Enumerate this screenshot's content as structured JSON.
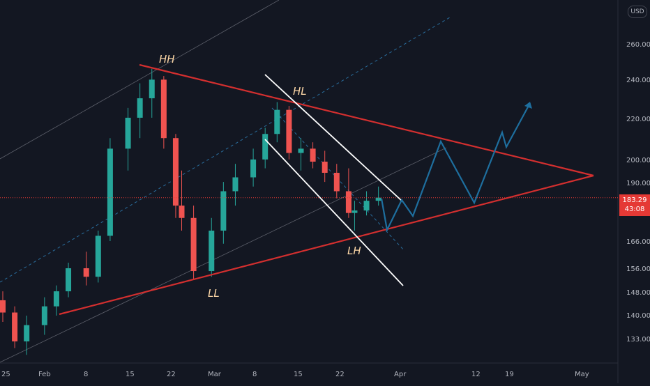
{
  "currency": "USD",
  "last_price": "183.29",
  "countdown": "43:08",
  "colors": {
    "background": "#131722",
    "up_candle": "#26a69a",
    "down_candle": "#ef5350",
    "triangle": "#d32f2f",
    "channel": "#ffffff",
    "projection": "#1e6f9f",
    "dashed_trend": "#2a6e9e",
    "price_line": "#e53935"
  },
  "y_axis": {
    "scale": "log",
    "ticks": [
      "260.00",
      "240.00",
      "220.00",
      "200.00",
      "190.00",
      "166.00",
      "156.00",
      "148.00",
      "140.00",
      "133.00"
    ]
  },
  "x_axis": {
    "ticks": [
      "25",
      "Feb",
      "8",
      "15",
      "22",
      "Mar",
      "8",
      "15",
      "22",
      "Apr",
      "12",
      "19",
      "May"
    ]
  },
  "annotations": {
    "hh": "HH",
    "hl": "HL",
    "ll": "LL",
    "lh": "LH"
  },
  "chart_data": {
    "type": "candlestick",
    "x_axis_type": "date",
    "y_axis_type": "log",
    "ylim": [
      125,
      290
    ],
    "xlim": [
      "2021-01-25",
      "2021-05-07"
    ],
    "grid": false,
    "price_line": 183.29,
    "series": [
      {
        "values": [
          [
            "2021-01-25",
            145,
            148,
            138,
            141
          ],
          [
            "2021-01-27",
            141,
            143,
            130,
            132
          ],
          [
            "2021-01-29",
            132,
            140,
            128,
            137
          ],
          [
            "2021-02-01",
            137,
            146,
            134,
            143
          ],
          [
            "2021-02-03",
            143,
            150,
            140,
            148
          ],
          [
            "2021-02-05",
            148,
            158,
            146,
            156
          ],
          [
            "2021-02-08",
            156,
            162,
            150,
            153
          ],
          [
            "2021-02-10",
            153,
            170,
            151,
            168
          ],
          [
            "2021-02-12",
            168,
            210,
            166,
            205
          ],
          [
            "2021-02-15",
            205,
            225,
            195,
            220
          ],
          [
            "2021-02-17",
            220,
            238,
            210,
            230
          ],
          [
            "2021-02-19",
            230,
            246,
            220,
            240
          ],
          [
            "2021-02-21",
            240,
            242,
            205,
            210
          ],
          [
            "2021-02-23",
            210,
            212,
            175,
            180
          ],
          [
            "2021-02-24",
            180,
            195,
            170,
            175
          ],
          [
            "2021-02-26",
            175,
            180,
            152,
            155
          ],
          [
            "2021-03-01",
            155,
            175,
            153,
            170
          ],
          [
            "2021-03-03",
            170,
            190,
            165,
            186
          ],
          [
            "2021-03-05",
            186,
            198,
            180,
            192
          ],
          [
            "2021-03-08",
            192,
            205,
            188,
            200
          ],
          [
            "2021-03-10",
            200,
            215,
            196,
            212
          ],
          [
            "2021-03-12",
            212,
            228,
            208,
            224
          ],
          [
            "2021-03-14",
            224,
            226,
            200,
            203
          ],
          [
            "2021-03-16",
            203,
            210,
            195,
            205
          ],
          [
            "2021-03-18",
            205,
            208,
            196,
            199
          ],
          [
            "2021-03-20",
            199,
            204,
            190,
            194
          ],
          [
            "2021-03-22",
            194,
            198,
            183,
            186
          ],
          [
            "2021-03-24",
            186,
            196,
            175,
            177
          ],
          [
            "2021-03-25",
            177,
            182,
            170,
            178
          ],
          [
            "2021-03-27",
            178,
            186,
            176,
            182
          ],
          [
            "2021-03-29",
            182,
            188,
            180,
            183.29
          ]
        ]
      }
    ],
    "trendlines": {
      "triangle_upper": [
        [
          "2021-02-18",
          248
        ],
        [
          "2021-04-25",
          193
        ]
      ],
      "triangle_lower": [
        [
          "2021-02-03",
          141
        ],
        [
          "2021-04-25",
          193
        ]
      ],
      "channel_upper": [
        [
          "2021-03-09",
          234
        ],
        [
          "2021-03-31",
          183
        ]
      ],
      "channel_lower": [
        [
          "2021-03-09",
          207
        ],
        [
          "2021-04-01",
          150
        ]
      ],
      "projection": [
        [
          "2021-03-31",
          180
        ],
        [
          "2021-04-01",
          172
        ],
        [
          "2021-04-03",
          180
        ],
        [
          "2021-04-05",
          175
        ],
        [
          "2021-04-10",
          208
        ],
        [
          "2021-04-17",
          180
        ],
        [
          "2021-04-23",
          209
        ],
        [
          "2021-04-24",
          204
        ],
        [
          "2021-04-29",
          228
        ]
      ]
    }
  }
}
